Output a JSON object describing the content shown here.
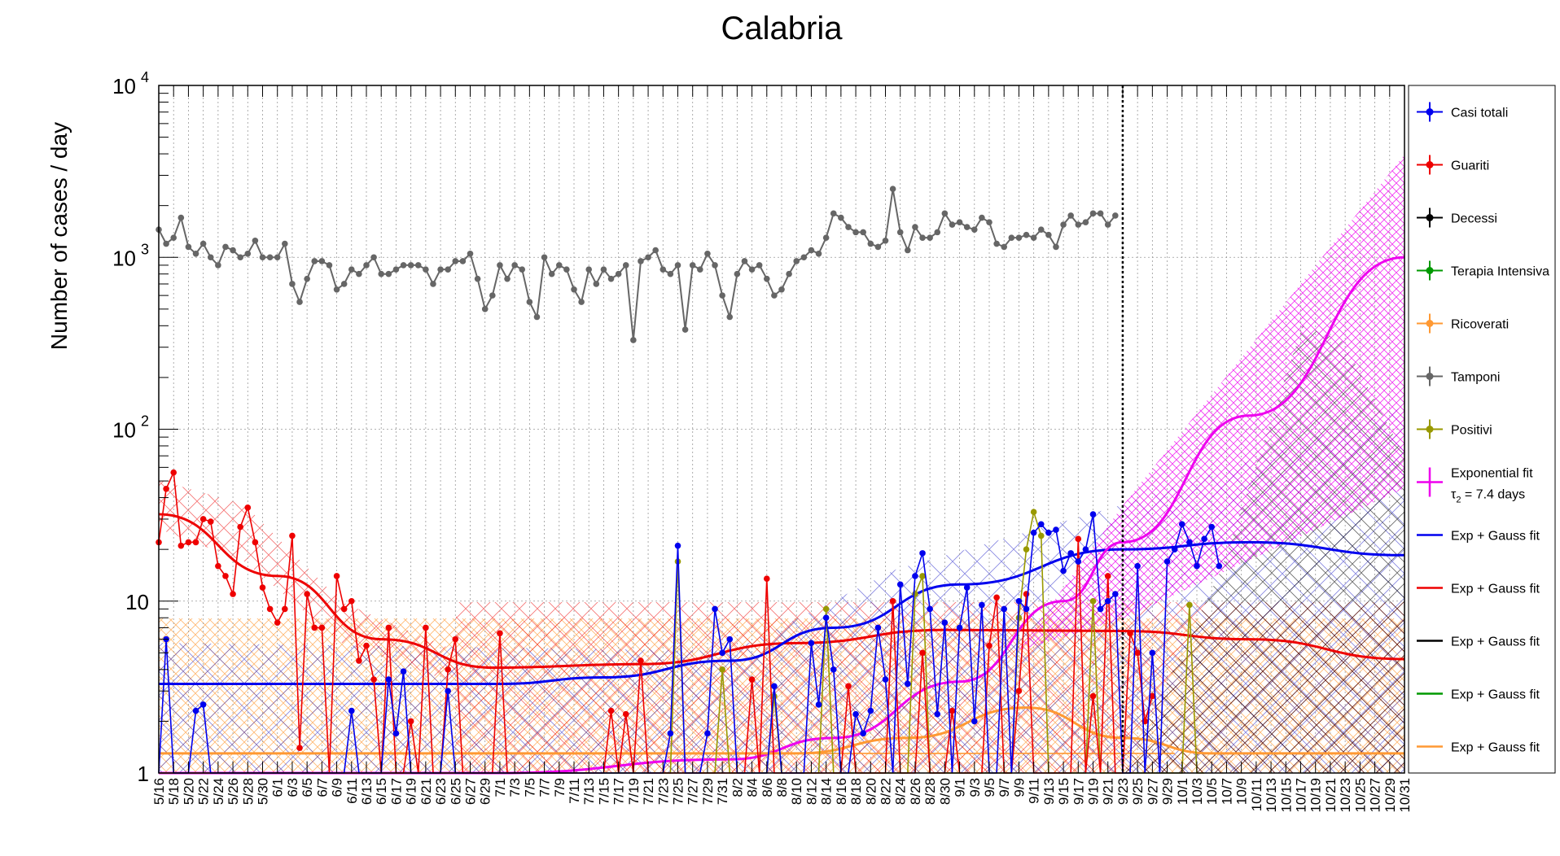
{
  "chart_data": {
    "type": "line",
    "title": "Calabria",
    "ylabel": "Number of cases / day",
    "xlabel": "",
    "yscale": "log",
    "ylim": [
      1,
      10000
    ],
    "yticks": [
      {
        "value": 1,
        "base": "1",
        "exp": ""
      },
      {
        "value": 10,
        "base": "10",
        "exp": ""
      },
      {
        "value": 100,
        "base": "10",
        "exp": "2"
      },
      {
        "value": 1000,
        "base": "10",
        "exp": "3"
      },
      {
        "value": 10000,
        "base": "10",
        "exp": "4"
      }
    ],
    "grid": true,
    "legend_position": "right",
    "x_start": "5/16",
    "x_end": "10/31",
    "data_end": "9/23",
    "x_tick_labels": [
      "5/16",
      "5/18",
      "5/20",
      "5/22",
      "5/24",
      "5/26",
      "5/28",
      "5/30",
      "6/1",
      "6/3",
      "6/5",
      "6/7",
      "6/9",
      "6/11",
      "6/13",
      "6/15",
      "6/17",
      "6/19",
      "6/21",
      "6/23",
      "6/25",
      "6/27",
      "6/29",
      "7/1",
      "7/3",
      "7/5",
      "7/7",
      "7/9",
      "7/11",
      "7/13",
      "7/15",
      "7/17",
      "7/19",
      "7/21",
      "7/23",
      "7/25",
      "7/27",
      "7/29",
      "7/31",
      "8/2",
      "8/4",
      "8/6",
      "8/8",
      "8/10",
      "8/12",
      "8/14",
      "8/16",
      "8/18",
      "8/20",
      "8/22",
      "8/24",
      "8/26",
      "8/28",
      "8/30",
      "9/1",
      "9/3",
      "9/5",
      "9/7",
      "9/9",
      "9/11",
      "9/13",
      "9/15",
      "9/17",
      "9/19",
      "9/21",
      "9/23",
      "9/25",
      "9/27",
      "9/29",
      "10/1",
      "10/3",
      "10/5",
      "10/7",
      "10/9",
      "10/11",
      "10/13",
      "10/15",
      "10/17",
      "10/19",
      "10/21",
      "10/23",
      "10/25",
      "10/27",
      "10/29",
      "10/31"
    ],
    "legend": [
      {
        "label": "Casi totali",
        "color": "#0000ee",
        "style": "marker"
      },
      {
        "label": "Guariti",
        "color": "#ee0000",
        "style": "marker"
      },
      {
        "label": "Decessi",
        "color": "#000000",
        "style": "marker"
      },
      {
        "label": "Terapia Intensiva",
        "color": "#009900",
        "style": "marker"
      },
      {
        "label": "Ricoverati",
        "color": "#ff9933",
        "style": "marker"
      },
      {
        "label": "Tamponi",
        "color": "#666666",
        "style": "marker"
      },
      {
        "label": "Positivi",
        "color": "#999900",
        "style": "marker"
      },
      {
        "label": "Exponential fit",
        "label2": "τ",
        "label2_sub": "2",
        "label2_rest": " = 7.4 days",
        "color": "#ee00ee",
        "style": "cross"
      },
      {
        "label": "Exp + Gauss fit",
        "color": "#0000ee",
        "style": "line"
      },
      {
        "label": "Exp + Gauss fit",
        "color": "#ee0000",
        "style": "line"
      },
      {
        "label": "Exp + Gauss fit",
        "color": "#000000",
        "style": "line"
      },
      {
        "label": "Exp + Gauss fit",
        "color": "#009900",
        "style": "line"
      },
      {
        "label": "Exp + Gauss fit",
        "color": "#ff9933",
        "style": "line"
      }
    ],
    "series": [
      {
        "name": "Tamponi",
        "color": "#666666",
        "marker": true,
        "values": [
          1450,
          1200,
          1300,
          1700,
          1150,
          1050,
          1200,
          1000,
          900,
          1150,
          1100,
          1000,
          1050,
          1250,
          1000,
          1000,
          1000,
          1200,
          700,
          550,
          750,
          950,
          950,
          900,
          650,
          700,
          850,
          800,
          900,
          1000,
          800,
          800,
          850,
          900,
          900,
          900,
          850,
          700,
          850,
          850,
          950,
          950,
          1050,
          750,
          500,
          600,
          900,
          750,
          900,
          850,
          550,
          450,
          1000,
          800,
          900,
          850,
          650,
          550,
          850,
          700,
          850,
          750,
          800,
          900,
          330,
          950,
          1000,
          1100,
          850,
          800,
          900,
          380,
          900,
          850,
          1050,
          900,
          600,
          450,
          800,
          950,
          850,
          900,
          750,
          600,
          650,
          800,
          950,
          1000,
          1100,
          1050,
          1300,
          1800,
          1700,
          1500,
          1400,
          1400,
          1200,
          1150,
          1250,
          2500,
          1400,
          1100,
          1500,
          1300,
          1300,
          1400,
          1800,
          1550,
          1600,
          1500,
          1450,
          1700,
          1600,
          1200,
          1150,
          1300,
          1300,
          1350,
          1300,
          1450,
          1350,
          1150,
          1550,
          1750,
          1550,
          1600,
          1800,
          1800,
          1550,
          1750
        ]
      },
      {
        "name": "Guariti",
        "color": "#ee0000",
        "marker": true,
        "values": [
          22,
          45,
          56,
          21,
          22,
          22,
          30,
          29,
          16,
          14,
          11,
          27,
          35,
          22,
          12,
          9,
          7.5,
          9,
          24,
          1.4,
          11,
          7,
          7,
          1,
          14,
          9,
          10,
          4.5,
          5.5,
          3.5,
          1,
          7,
          1,
          1,
          2,
          1,
          7,
          1,
          1,
          4,
          6,
          1,
          1,
          1,
          1,
          1,
          6.5,
          1,
          1,
          1,
          1,
          1,
          1,
          1,
          1,
          1,
          1,
          1,
          1,
          1,
          1,
          2.3,
          1,
          2.2,
          1,
          4.5,
          1,
          1,
          1,
          1,
          1,
          1,
          1,
          1,
          1,
          1,
          1,
          1,
          1,
          1,
          3.5,
          1,
          13.5,
          1,
          1,
          1,
          1,
          1,
          1,
          1,
          1,
          1,
          1,
          3.2,
          1,
          1,
          1,
          1,
          1,
          10,
          1,
          1,
          1,
          5,
          1,
          1,
          1,
          2.3,
          1,
          1,
          1,
          1,
          5.5,
          10.5,
          1,
          1,
          3,
          11,
          1,
          1,
          1,
          1,
          1,
          1,
          23,
          1,
          2.8,
          1,
          14,
          1,
          1,
          6.5,
          5,
          2,
          2.8
        ]
      },
      {
        "name": "Casi totali",
        "color": "#0000ee",
        "marker": true,
        "values": [
          1,
          6,
          1,
          1,
          1,
          2.3,
          2.5,
          1,
          1,
          1,
          1,
          1,
          1,
          1,
          1,
          1,
          1,
          1,
          1,
          1,
          1,
          1,
          1,
          1,
          1,
          1,
          2.3,
          1,
          1,
          1,
          1,
          3.5,
          1.7,
          3.9,
          1,
          1,
          1,
          1,
          1,
          3,
          1,
          1,
          1,
          1,
          1,
          1,
          1,
          1,
          1,
          1,
          1,
          1,
          1,
          1,
          1,
          1,
          1,
          1,
          1,
          1,
          1,
          1,
          1,
          1,
          1,
          1,
          1,
          1,
          1,
          1.7,
          21,
          1,
          1,
          1,
          1.7,
          9,
          5,
          6,
          1,
          1,
          1,
          1,
          1,
          3.2,
          1,
          1,
          1,
          1,
          5.7,
          2.5,
          8,
          4,
          1,
          1,
          2.2,
          1.7,
          2.3,
          7,
          3.5,
          1,
          12.5,
          3.3,
          14,
          19,
          9,
          2.2,
          7.5,
          1,
          7,
          12,
          2,
          9.5,
          1,
          1,
          9,
          1,
          10,
          9,
          25,
          28,
          25,
          26,
          15,
          19,
          17,
          20,
          32,
          9,
          10,
          11,
          1,
          1,
          16,
          1,
          5,
          1,
          17,
          20,
          28,
          22,
          16,
          23,
          27,
          16
        ]
      },
      {
        "name": "Positivi",
        "color": "#999900",
        "marker": true,
        "values": [
          1,
          1,
          1,
          1,
          1,
          1,
          1,
          1,
          1,
          1,
          1,
          1,
          1,
          1,
          1,
          1,
          1,
          1,
          1,
          1,
          1,
          1,
          1,
          1,
          1,
          1,
          1,
          1,
          1,
          1,
          1,
          1,
          1,
          1,
          1,
          1,
          1,
          1,
          1,
          1,
          1,
          1,
          1,
          1,
          1,
          1,
          1,
          1,
          1,
          1,
          1,
          1,
          1,
          1,
          1,
          1,
          1,
          1,
          1,
          1,
          1,
          1,
          1,
          1,
          1,
          1,
          1,
          1,
          1,
          1,
          17,
          1,
          1,
          1,
          1,
          1,
          4,
          1,
          1,
          1,
          1,
          1,
          1,
          2.8,
          1,
          1,
          1,
          1,
          1,
          1,
          9,
          1,
          1,
          1,
          1,
          1,
          1,
          1,
          1,
          1,
          1,
          1,
          11,
          14,
          1,
          1,
          1,
          1,
          1,
          1,
          1,
          1,
          1,
          1,
          1,
          1,
          8,
          20,
          33,
          24,
          1,
          1,
          1,
          1,
          1,
          1,
          10,
          1,
          1,
          1,
          1,
          1,
          1,
          1,
          1,
          1,
          1,
          1,
          1,
          9.5,
          1,
          1
        ]
      },
      {
        "name": "Ricoverati",
        "color": "#ff9933",
        "marker": false,
        "values": [
          1.3,
          1.3,
          1.3,
          1.3,
          1.3,
          1.3,
          1.3,
          1.3,
          1.3,
          1.3,
          1.3,
          1.3,
          1.3,
          1.3,
          1.3,
          1.3,
          1.3,
          1.3,
          1.3,
          1.3,
          1.3,
          1.3,
          1.3,
          1.3,
          1.3,
          1.3,
          1.3,
          1.3,
          1.3,
          1.3,
          1.3,
          1.3,
          1.3,
          1.3,
          1.3,
          1.3,
          1.3,
          1.3,
          1.3,
          1.3,
          1.3,
          1.3,
          1.3,
          1.3,
          1.3,
          1.3,
          1.3,
          1.3,
          1.3,
          1.3,
          1.3,
          1.3,
          1.3,
          1.3,
          1.3,
          1.3,
          1.3,
          1.3,
          1.3,
          1.3,
          1.3,
          1.3,
          1.3,
          1.3,
          1.3,
          1.3,
          1.3,
          1.3,
          1.3,
          1.3,
          1.3,
          1.3,
          1.3,
          1.3,
          1.3,
          1.3,
          1.3,
          1.3,
          1.3,
          1.3,
          1.3,
          1.3,
          1.3,
          1.3,
          1.3,
          1.3,
          1.3,
          1.3,
          1.3,
          1.3,
          1.3,
          1.3,
          1.3,
          1.3,
          1.3,
          1.3,
          1.3,
          1.3,
          1.3,
          1.3,
          1.3,
          1.3,
          1.3,
          1.3,
          1.3,
          1.3,
          1.3,
          1.3,
          1.3,
          1.3,
          1.3,
          1.3,
          1.3,
          1.3,
          1.3,
          1.3,
          1.3,
          1.3,
          1.3,
          1.3,
          1.3,
          1.3,
          1.3,
          1.3,
          1.3,
          1.3,
          1.3,
          1.3,
          1.3,
          1.3,
          1.3,
          1.3,
          1.3,
          1.3,
          1.3,
          1.3,
          1.3,
          1.3
        ]
      }
    ],
    "fits": [
      {
        "name": "Exp + Gauss fit (Guariti)",
        "color": "#ee0000",
        "x": [
          "5/16",
          "6/1",
          "6/15",
          "6/30",
          "7/20",
          "8/10",
          "8/30",
          "9/23",
          "10/10",
          "10/31"
        ],
        "y": [
          32,
          14,
          6.0,
          4.1,
          4.3,
          5.7,
          6.8,
          6.7,
          6.0,
          4.6
        ]
      },
      {
        "name": "Exp + Gauss fit (Casi totali)",
        "color": "#0000ee",
        "x": [
          "5/16",
          "7/1",
          "7/15",
          "8/1",
          "8/15",
          "9/1",
          "9/23",
          "10/10",
          "10/31"
        ],
        "y": [
          3.3,
          3.3,
          3.6,
          4.5,
          7.0,
          12.5,
          20,
          22,
          18.5
        ]
      },
      {
        "name": "Exponential fit",
        "color": "#ee00ee",
        "x": [
          "5/16",
          "7/1",
          "8/1",
          "8/15",
          "9/1",
          "9/15",
          "9/23",
          "10/10",
          "10/31"
        ],
        "y": [
          1,
          1,
          1.2,
          1.6,
          3.4,
          10,
          22,
          120,
          1000
        ]
      },
      {
        "name": "Exp + Gauss fit (Ricoverati)",
        "color": "#ff9933",
        "x": [
          "5/16",
          "8/10",
          "8/25",
          "9/10",
          "9/23",
          "10/5",
          "10/31"
        ],
        "y": [
          1.3,
          1.3,
          1.6,
          2.4,
          1.6,
          1.3,
          1.3
        ]
      }
    ]
  }
}
